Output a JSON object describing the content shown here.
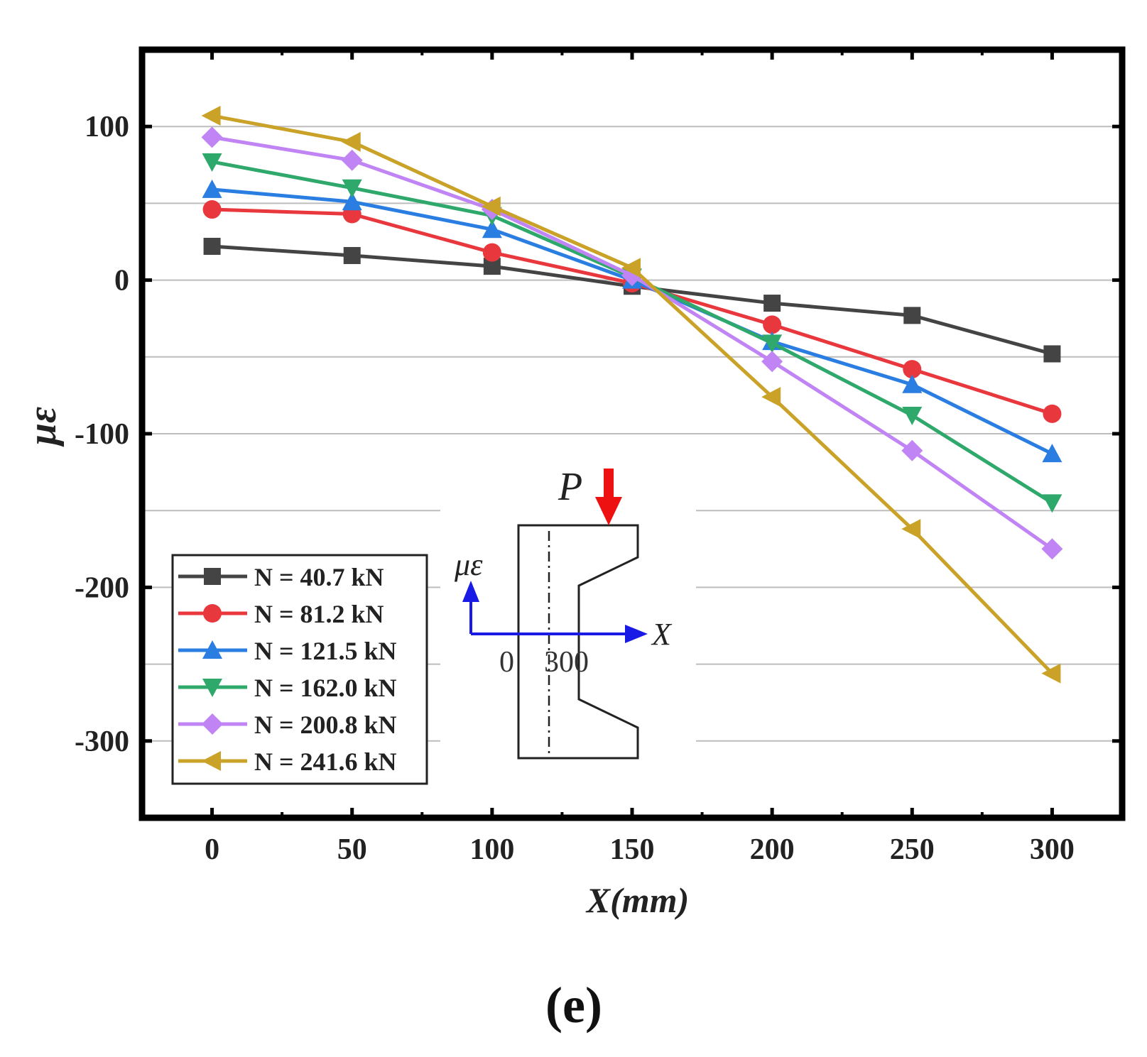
{
  "chart_data": {
    "type": "line",
    "xlabel": "X(mm)",
    "ylabel": "με",
    "xlim": [
      -25,
      325
    ],
    "ylim": [
      -350,
      150
    ],
    "x": [
      0,
      50,
      100,
      150,
      200,
      250,
      300
    ],
    "xticks": [
      "0",
      "50",
      "100",
      "150",
      "200",
      "250",
      "300"
    ],
    "yticks": [
      100,
      0,
      -100,
      -200,
      -300
    ],
    "ytick_labels": [
      "100",
      "0",
      "-100",
      "-200",
      "-300"
    ],
    "grid": true,
    "legend_position": "bottom-left",
    "series": [
      {
        "name": "N = 40.7 kN",
        "color": "#444444",
        "marker": "square",
        "values": [
          22,
          16,
          9,
          -4,
          -15,
          -23,
          -48
        ]
      },
      {
        "name": "N = 81.2 kN",
        "color": "#e8383d",
        "marker": "circle",
        "values": [
          46,
          43,
          18,
          -2,
          -29,
          -58,
          -87
        ]
      },
      {
        "name": "N = 121.5 kN",
        "color": "#2a7de1",
        "marker": "triangle-up",
        "values": [
          59,
          51,
          33,
          0,
          -40,
          -68,
          -113
        ]
      },
      {
        "name": "N = 162.0 kN",
        "color": "#2ea86b",
        "marker": "triangle-down",
        "values": [
          77,
          60,
          42,
          2,
          -41,
          -88,
          -145
        ]
      },
      {
        "name": "N = 200.8 kN",
        "color": "#c084f5",
        "marker": "diamond",
        "values": [
          93,
          78,
          46,
          3,
          -53,
          -111,
          -175
        ]
      },
      {
        "name": "N = 241.6 kN",
        "color": "#c9a227",
        "marker": "triangle-left",
        "values": [
          107,
          90,
          48,
          8,
          -76,
          -162,
          -256
        ]
      }
    ]
  },
  "inset": {
    "load_label": "P",
    "strain_label": "με",
    "axis_label": "X",
    "origin_label": "0",
    "end_label": "300"
  },
  "caption": "(e)",
  "colors": {
    "load_arrow": "#ee1111",
    "axis_arrow": "#1a1ae6",
    "frame": "#000000",
    "grid": "#bdbdbd"
  }
}
